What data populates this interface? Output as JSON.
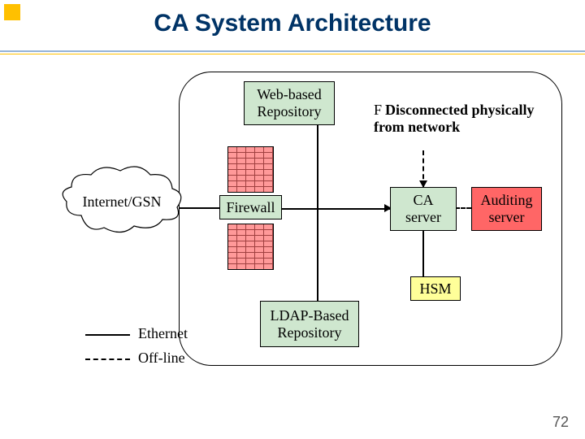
{
  "title": "CA System Architecture",
  "nodes": {
    "webrepo": {
      "label": "Web-based\nRepository"
    },
    "firewall": {
      "label": "Firewall"
    },
    "ldap": {
      "label": "LDAP-Based\nRepository"
    },
    "ca": {
      "label": "CA\nserver"
    },
    "audit": {
      "label": "Auditing\nserver"
    },
    "hsm": {
      "label": "HSM"
    },
    "internet": {
      "label": "Internet/GSN"
    }
  },
  "note": {
    "bullet": "F",
    "text": "Disconnected physically from network"
  },
  "legend": {
    "ethernet": "Ethernet",
    "offline": "Off-line"
  },
  "pagenum": "72",
  "colors": {
    "node_fill": "#cfe7cf",
    "audit_fill": "#ff6666",
    "hsm_fill": "#ffff99",
    "brick_fill": "#ff9999",
    "title_color": "#003366",
    "accent": "#ffc000"
  }
}
